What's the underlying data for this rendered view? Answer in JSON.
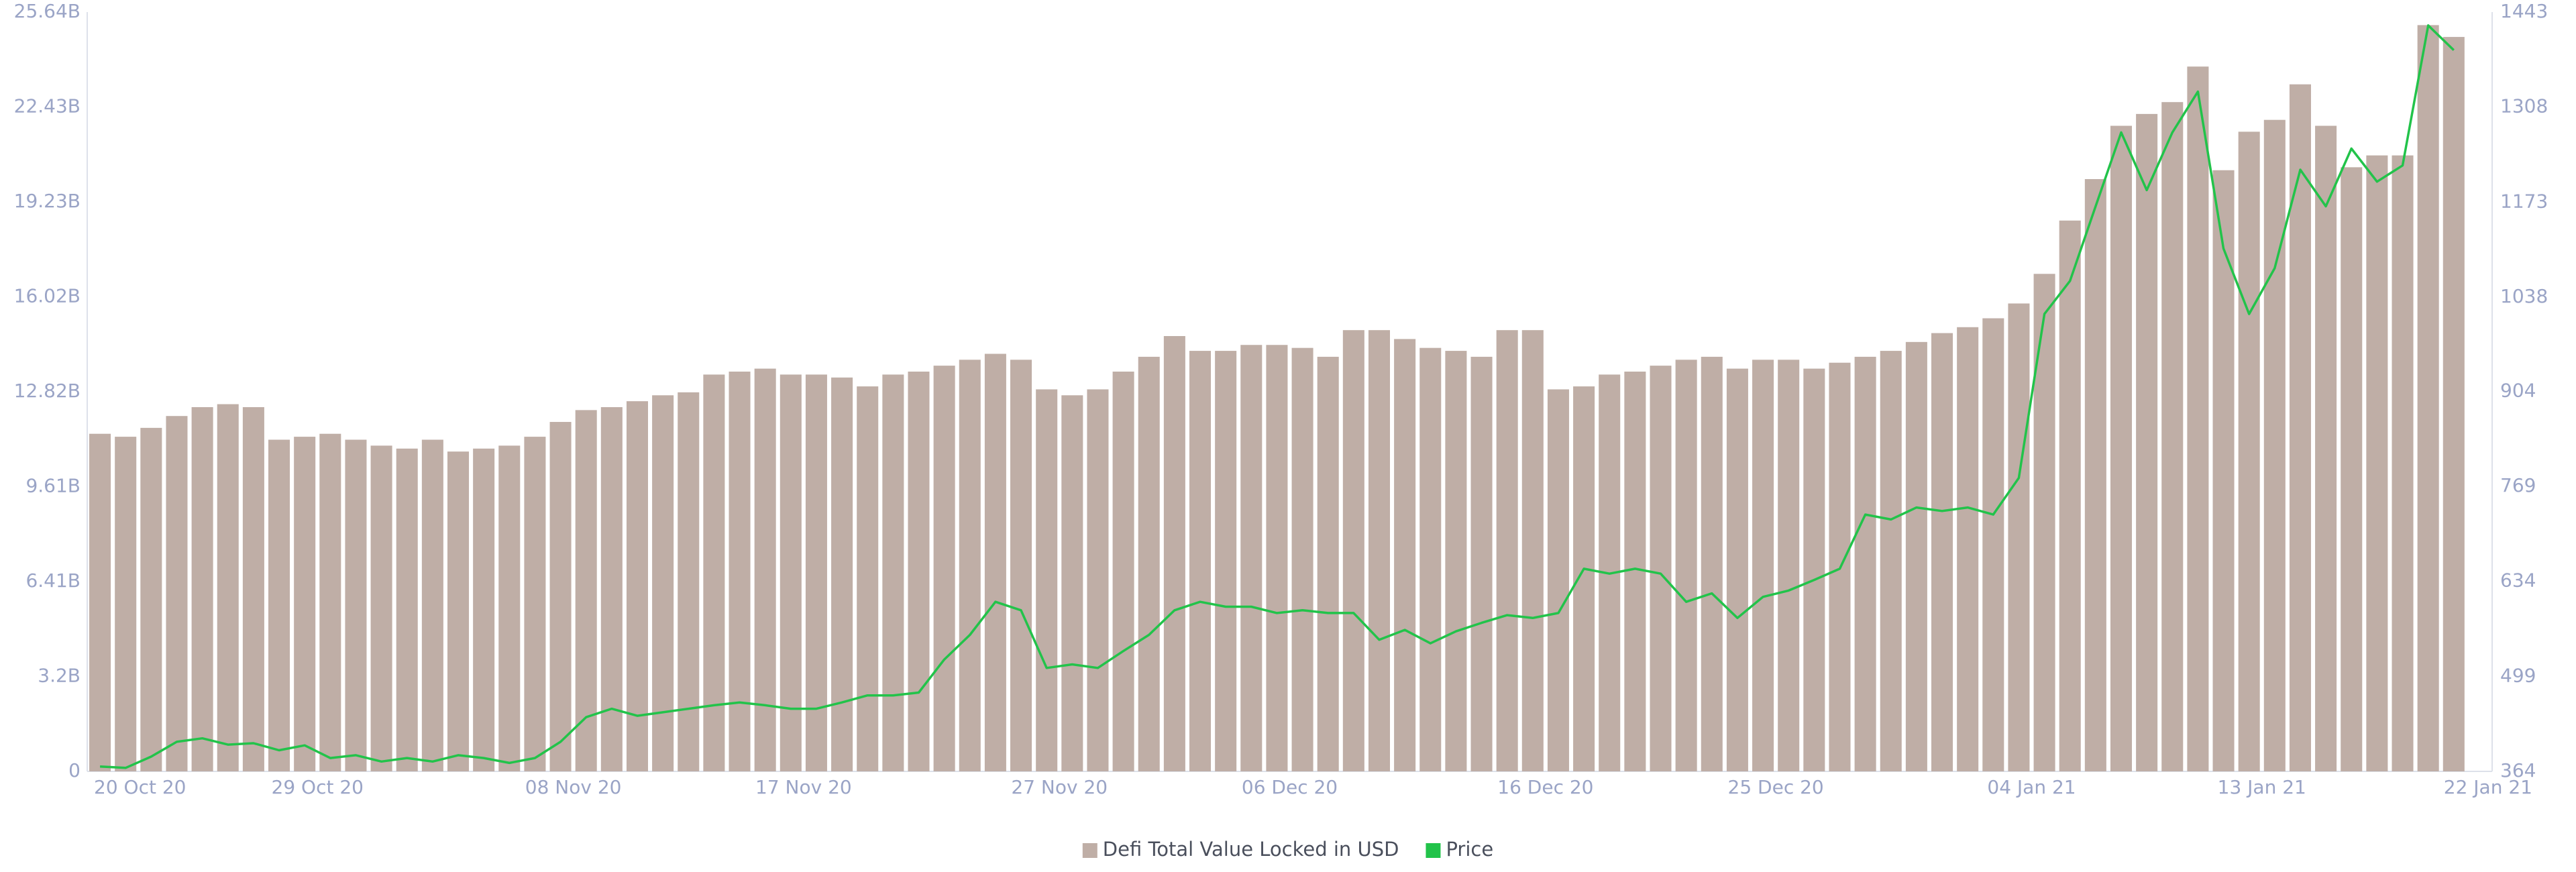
{
  "chart_data": {
    "type": "bar-line",
    "x": [
      "2020-10-20",
      "2020-10-21",
      "2020-10-22",
      "2020-10-23",
      "2020-10-24",
      "2020-10-25",
      "2020-10-26",
      "2020-10-27",
      "2020-10-28",
      "2020-10-29",
      "2020-10-30",
      "2020-10-31",
      "2020-11-01",
      "2020-11-02",
      "2020-11-03",
      "2020-11-04",
      "2020-11-05",
      "2020-11-06",
      "2020-11-07",
      "2020-11-08",
      "2020-11-09",
      "2020-11-10",
      "2020-11-11",
      "2020-11-12",
      "2020-11-13",
      "2020-11-14",
      "2020-11-15",
      "2020-11-16",
      "2020-11-17",
      "2020-11-18",
      "2020-11-19",
      "2020-11-20",
      "2020-11-21",
      "2020-11-22",
      "2020-11-23",
      "2020-11-24",
      "2020-11-25",
      "2020-11-26",
      "2020-11-27",
      "2020-11-28",
      "2020-11-29",
      "2020-11-30",
      "2020-12-01",
      "2020-12-02",
      "2020-12-03",
      "2020-12-04",
      "2020-12-05",
      "2020-12-06",
      "2020-12-07",
      "2020-12-08",
      "2020-12-09",
      "2020-12-10",
      "2020-12-11",
      "2020-12-12",
      "2020-12-13",
      "2020-12-14",
      "2020-12-15",
      "2020-12-16",
      "2020-12-17",
      "2020-12-18",
      "2020-12-19",
      "2020-12-20",
      "2020-12-21",
      "2020-12-22",
      "2020-12-23",
      "2020-12-24",
      "2020-12-25",
      "2020-12-26",
      "2020-12-27",
      "2020-12-28",
      "2020-12-29",
      "2020-12-30",
      "2020-12-31",
      "2021-01-01",
      "2021-01-02",
      "2021-01-03",
      "2021-01-04",
      "2021-01-05",
      "2021-01-06",
      "2021-01-07",
      "2021-01-08",
      "2021-01-09",
      "2021-01-10",
      "2021-01-11",
      "2021-01-12",
      "2021-01-13",
      "2021-01-14",
      "2021-01-15",
      "2021-01-16",
      "2021-01-17",
      "2021-01-18",
      "2021-01-19",
      "2021-01-20"
    ],
    "series": [
      {
        "name": "Defi Total Value Locked in USD",
        "color": "#bfaea6",
        "type": "bar",
        "values": [
          11400000000.0,
          11300000000.0,
          11600000000.0,
          12000000000.0,
          12300000000.0,
          12400000000.0,
          12300000000.0,
          11200000000.0,
          11300000000.0,
          11400000000.0,
          11200000000.0,
          11000000000.0,
          10900000000.0,
          11200000000.0,
          10800000000.0,
          10900000000.0,
          11000000000.0,
          11300000000.0,
          11800000000.0,
          12200000000.0,
          12300000000.0,
          12500000000.0,
          12700000000.0,
          12800000000.0,
          13400000000.0,
          13500000000.0,
          13600000000.0,
          13400000000.0,
          13400000000.0,
          13300000000.0,
          13000000000.0,
          13400000000.0,
          13500000000.0,
          13700000000.0,
          13900000000.0,
          14100000000.0,
          13900000000.0,
          12900000000.0,
          12700000000.0,
          12900000000.0,
          13500000000.0,
          14000000000.0,
          14700000000.0,
          14200000000.0,
          14200000000.0,
          14400000000.0,
          14400000000.0,
          14300000000.0,
          14000000000.0,
          14900000000.0,
          14900000000.0,
          14600000000.0,
          14300000000.0,
          14200000000.0,
          14000000000.0,
          14900000000.0,
          14900000000.0,
          12900000000.0,
          13000000000.0,
          13400000000.0,
          13500000000.0,
          13700000000.0,
          13900000000.0,
          14000000000.0,
          13600000000.0,
          13900000000.0,
          13900000000.0,
          13600000000.0,
          13800000000.0,
          14000000000.0,
          14200000000.0,
          14500000000.0,
          14800000000.0,
          15000000000.0,
          15300000000.0,
          15800000000.0,
          16800000000.0,
          18600000000.0,
          20000000000.0,
          21800000000.0,
          22200000000.0,
          22600000000.0,
          23800000000.0,
          20300000000.0,
          21600000000.0,
          22000000000.0,
          23200000000.0,
          21800000000.0,
          20400000000.0,
          20800000000.0,
          20800000000.0,
          25200000000.0,
          24800000000.0
        ]
      },
      {
        "name": "Price",
        "color": "#22c34a",
        "type": "line",
        "axis": "y2",
        "values": [
          371,
          369,
          385,
          406,
          411,
          402,
          404,
          394,
          401,
          383,
          387,
          378,
          383,
          378,
          387,
          383,
          376,
          383,
          406,
          441,
          453,
          443,
          448,
          453,
          458,
          462,
          458,
          453,
          453,
          462,
          472,
          472,
          476,
          523,
          558,
          605,
          593,
          511,
          516,
          511,
          535,
          558,
          593,
          605,
          598,
          598,
          589,
          593,
          589,
          589,
          551,
          565,
          546,
          563,
          575,
          586,
          582,
          589,
          652,
          645,
          652,
          645,
          605,
          617,
          582,
          612,
          621,
          636,
          652,
          729,
          722,
          739,
          734,
          739,
          729,
          781,
          1014,
          1061,
          1167,
          1272,
          1190,
          1272,
          1330,
          1107,
          1014,
          1079,
          1219,
          1167,
          1249,
          1202,
          1225,
          1424,
          1389
        ]
      }
    ],
    "xlim": [
      "2020-10-20",
      "2021-01-22"
    ],
    "xticks": [
      {
        "value": "2020-10-20",
        "label": "20 Oct 20"
      },
      {
        "value": "2020-10-29",
        "label": "29 Oct 20"
      },
      {
        "value": "2020-11-08",
        "label": "08 Nov 20"
      },
      {
        "value": "2020-11-17",
        "label": "17 Nov 20"
      },
      {
        "value": "2020-11-27",
        "label": "27 Nov 20"
      },
      {
        "value": "2020-12-06",
        "label": "06 Dec 20"
      },
      {
        "value": "2020-12-16",
        "label": "16 Dec 20"
      },
      {
        "value": "2020-12-25",
        "label": "25 Dec 20"
      },
      {
        "value": "2021-01-04",
        "label": "04 Jan 21"
      },
      {
        "value": "2021-01-13",
        "label": "13 Jan 21"
      },
      {
        "value": "2021-01-22",
        "label": "22 Jan 21"
      }
    ],
    "ylim": [
      0,
      25640000000.0
    ],
    "yticks": [
      0,
      {
        "value": 3200000000.0,
        "label": "3.2B"
      },
      {
        "value": 6410000000.0,
        "label": "6.41B"
      },
      {
        "value": 9610000000.0,
        "label": "9.61B"
      },
      {
        "value": 12820000000.0,
        "label": "12.82B"
      },
      {
        "value": 16020000000.0,
        "label": "16.02B"
      },
      {
        "value": 19230000000.0,
        "label": "19.23B"
      },
      {
        "value": 22430000000.0,
        "label": "22.43B"
      },
      {
        "value": 25640000000.0,
        "label": "25.64B"
      }
    ],
    "y2lim": [
      364,
      1443
    ],
    "y2ticks": [
      364,
      499,
      634,
      769,
      904,
      1038,
      1173,
      1308,
      1443
    ],
    "grid": false,
    "legend": "bottom"
  }
}
